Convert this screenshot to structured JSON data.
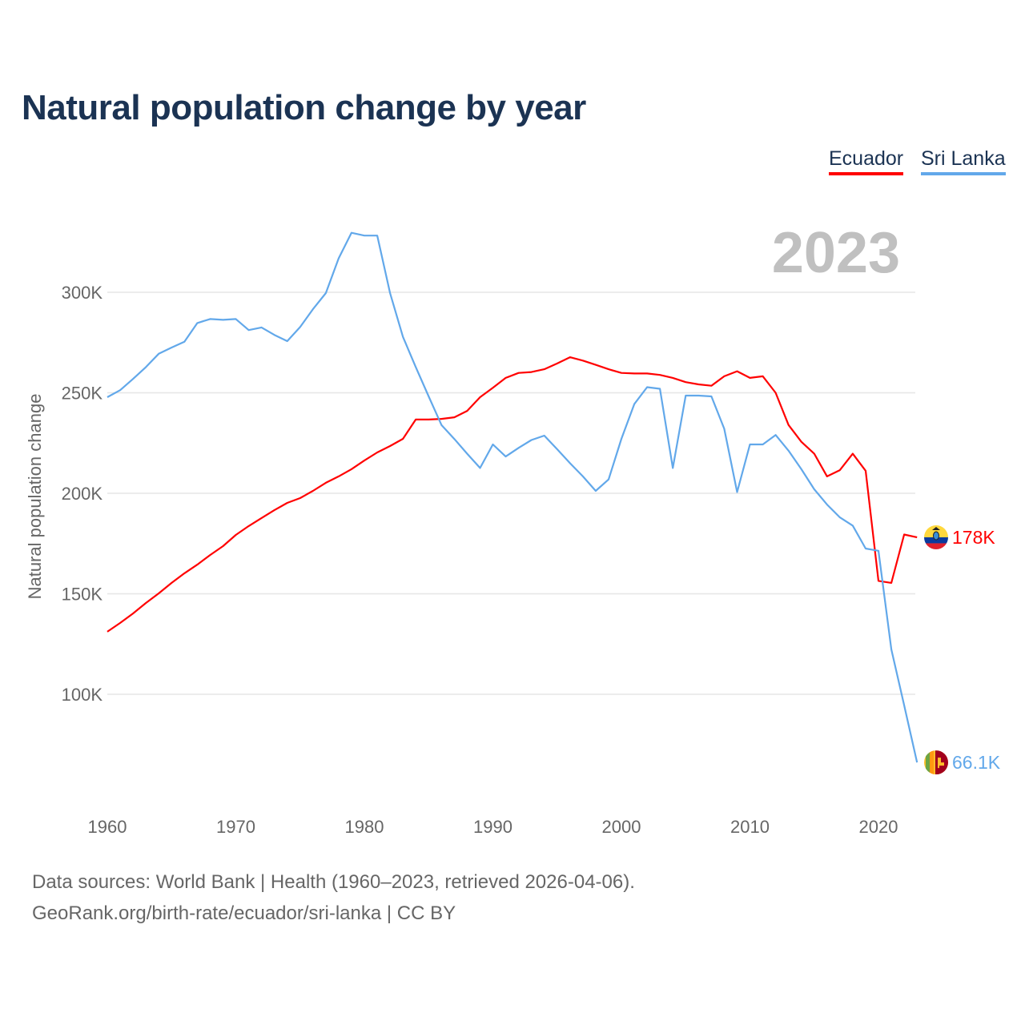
{
  "chart_data": {
    "type": "line",
    "title": "Natural population change by year",
    "xlabel": "",
    "ylabel": "Natural population change",
    "year_label": "2023",
    "xlim": [
      1960,
      2023
    ],
    "ylim": [
      47000,
      342000
    ],
    "grid": true,
    "legend_position": "top-right",
    "x_ticks": [
      1960,
      1970,
      1980,
      1990,
      2000,
      2010,
      2020
    ],
    "x_tick_labels": [
      "1960",
      "1970",
      "1980",
      "1990",
      "2000",
      "2010",
      "2020"
    ],
    "y_ticks": [
      100000,
      150000,
      200000,
      250000,
      300000
    ],
    "y_tick_labels": [
      "100K",
      "150K",
      "200K",
      "250K",
      "300K"
    ],
    "x_start": 1960,
    "series": [
      {
        "name": "Ecuador",
        "color": "#ff0000",
        "end_label": "178K",
        "values": [
          131100,
          135500,
          140200,
          145400,
          150200,
          155400,
          160200,
          164500,
          169300,
          173700,
          179300,
          183700,
          187700,
          191600,
          195200,
          197600,
          201200,
          205200,
          208400,
          212000,
          216300,
          220300,
          223500,
          227100,
          236700,
          236700,
          237000,
          237800,
          241000,
          247800,
          252500,
          257400,
          259900,
          260300,
          261700,
          264600,
          267700,
          266000,
          263900,
          261700,
          259900,
          259600,
          259600,
          258900,
          257400,
          255300,
          254200,
          253500,
          258200,
          260700,
          257400,
          258200,
          250000,
          234000,
          225600,
          219700,
          208400,
          211500,
          219700,
          211200,
          156400,
          155400,
          179500,
          178100
        ]
      },
      {
        "name": "Sri Lanka",
        "color": "#62a8ea",
        "end_label": "66.1K",
        "values": [
          247800,
          251300,
          256900,
          262800,
          269400,
          272500,
          275400,
          284700,
          286700,
          286300,
          286700,
          281200,
          282500,
          278800,
          275700,
          282700,
          291600,
          299600,
          316900,
          329600,
          328200,
          328200,
          299600,
          277800,
          262800,
          248200,
          234000,
          227000,
          219700,
          212600,
          224300,
          218300,
          222600,
          226500,
          228700,
          221900,
          215000,
          208400,
          201200,
          206900,
          227100,
          244400,
          252800,
          252000,
          212600,
          248600,
          248600,
          248200,
          232100,
          200600,
          224300,
          224300,
          229000,
          221200,
          212000,
          202000,
          194400,
          188000,
          183900,
          172500,
          171400,
          122300,
          94500,
          66100
        ]
      }
    ]
  },
  "footer": {
    "line1": "Data sources: World Bank | Health (1960–2023, retrieved 2026-04-06).",
    "line2": "GeoRank.org/birth-rate/ecuador/sri-lanka | CC BY"
  }
}
